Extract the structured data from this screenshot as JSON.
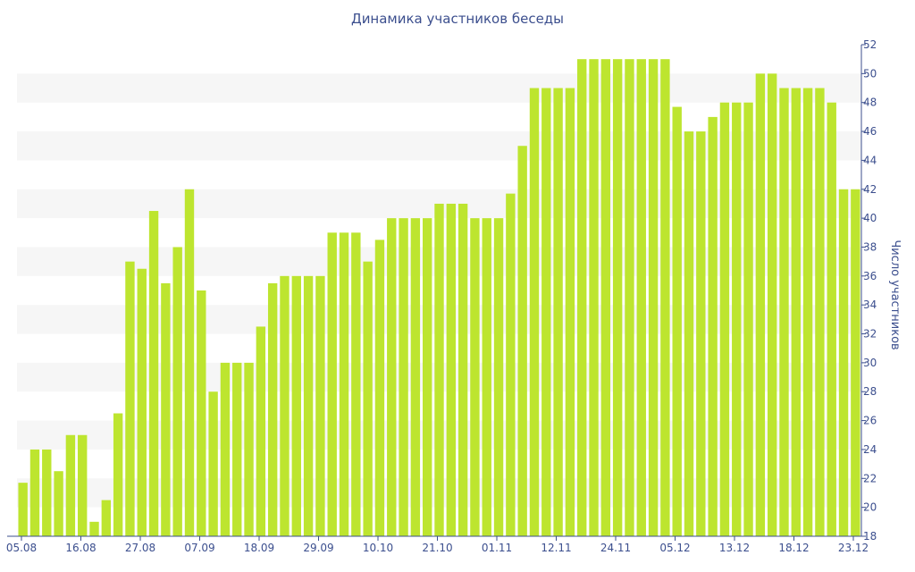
{
  "chart_data": {
    "type": "bar",
    "title": "Динамика участников беседы",
    "ylabel": "Число участников",
    "xlabel": "",
    "ylim": [
      18,
      52
    ],
    "y_ticks": [
      18,
      20,
      22,
      24,
      26,
      28,
      30,
      32,
      34,
      36,
      38,
      40,
      42,
      44,
      46,
      48,
      50,
      52
    ],
    "x_tick_labels": [
      "05.08",
      "16.08",
      "27.08",
      "07.09",
      "18.09",
      "29.09",
      "10.10",
      "21.10",
      "01.11",
      "12.11",
      "24.11",
      "05.12",
      "13.12",
      "18.12",
      "23.12"
    ],
    "y_axis_position": "right",
    "grid": "alternating horizontal bands",
    "bar_color": "#bde52f",
    "band_color": "#f6f6f6",
    "text_color": "#3c4f8e",
    "values": [
      21.7,
      24,
      24,
      22.5,
      25,
      25,
      19,
      20.5,
      26.5,
      37,
      36.5,
      40.5,
      35.5,
      38,
      42,
      35,
      28,
      30,
      30,
      30,
      32.5,
      35.5,
      36,
      36,
      36,
      36,
      39,
      39,
      39,
      37,
      38.5,
      40,
      40,
      40,
      40,
      41,
      41,
      41,
      40,
      40,
      40,
      41.7,
      45,
      49,
      49,
      49,
      49,
      51,
      51,
      51,
      51,
      51,
      51,
      51,
      51,
      47.7,
      46,
      46,
      47,
      48,
      48,
      48,
      50,
      50,
      49,
      49,
      49,
      49,
      48,
      42,
      42
    ]
  }
}
